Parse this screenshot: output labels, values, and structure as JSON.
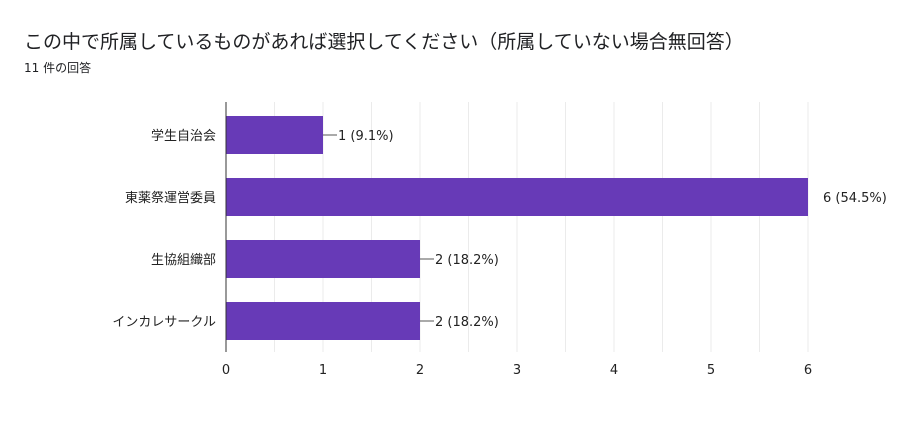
{
  "header": {
    "title": "この中で所属しているものがあれば選択してください（所属していない場合無回答）",
    "response_count": "11 件の回答"
  },
  "colors": {
    "bar": "#673ab7",
    "grid": "#ebebeb",
    "axis": "#333333",
    "connector": "#555555"
  },
  "chart_data": {
    "type": "bar",
    "orientation": "horizontal",
    "title": "この中で所属しているものがあれば選択してください（所属していない場合無回答）",
    "subtitle": "11 件の回答",
    "categories": [
      "学生自治会",
      "東薬祭運営委員",
      "生協組織部",
      "インカレサークル"
    ],
    "values": [
      1,
      6,
      2,
      2
    ],
    "data_labels": [
      "1 (9.1%)",
      "6 (54.5%)",
      "2 (18.2%)",
      "2 (18.2%)"
    ],
    "xlim": [
      0,
      6
    ],
    "x_ticks": [
      0,
      1,
      2,
      3,
      4,
      5,
      6
    ],
    "grid": true,
    "legend": "none"
  }
}
